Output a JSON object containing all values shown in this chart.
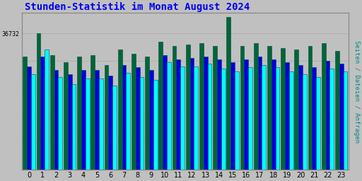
{
  "title": "Stunden-Statistik im Monat August 2024",
  "title_color": "#0000ee",
  "ylabel_right": "Seiten / Dateien / Anfragen",
  "ylabel_right_color": "#008888",
  "ytick_label": "36732",
  "background_color": "#c0c0c0",
  "plot_bg_color": "#c0c0c0",
  "bar_width": 0.3,
  "hours": [
    0,
    1,
    2,
    3,
    4,
    5,
    6,
    7,
    8,
    9,
    10,
    11,
    12,
    13,
    14,
    15,
    16,
    17,
    18,
    19,
    20,
    21,
    22,
    23
  ],
  "seiten": [
    0.7,
    0.88,
    0.68,
    0.63,
    0.67,
    0.67,
    0.62,
    0.71,
    0.68,
    0.66,
    0.79,
    0.76,
    0.76,
    0.78,
    0.74,
    0.72,
    0.75,
    0.77,
    0.75,
    0.72,
    0.7,
    0.68,
    0.74,
    0.72
  ],
  "dateien": [
    0.76,
    0.83,
    0.73,
    0.7,
    0.73,
    0.73,
    0.69,
    0.77,
    0.75,
    0.73,
    0.84,
    0.81,
    0.82,
    0.83,
    0.81,
    0.79,
    0.81,
    0.83,
    0.81,
    0.79,
    0.77,
    0.75,
    0.8,
    0.78
  ],
  "anfragen": [
    0.83,
    1.0,
    0.84,
    0.79,
    0.83,
    0.84,
    0.77,
    0.88,
    0.85,
    0.83,
    0.94,
    0.91,
    0.92,
    0.93,
    0.91,
    1.12,
    0.91,
    0.93,
    0.91,
    0.89,
    0.88,
    0.91,
    0.93,
    0.87
  ],
  "color_seiten": "#00ffff",
  "color_dateien": "#0000dd",
  "color_anfragen": "#006633",
  "edge_color": "#004455",
  "grid_color": "#b0b0b0",
  "grid_lines": [
    0.2,
    0.4,
    0.6,
    0.8,
    1.0
  ],
  "ylim_max": 1.15,
  "ytick_pos": 1.0
}
